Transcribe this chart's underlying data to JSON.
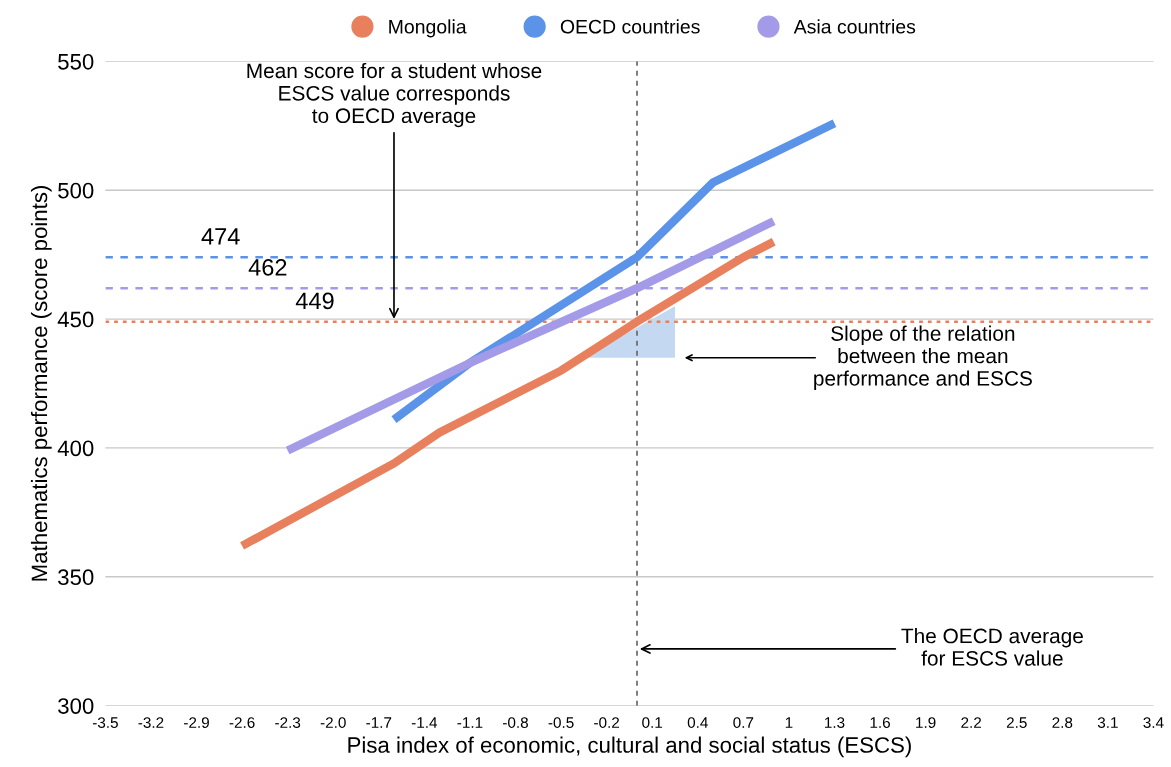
{
  "chart_data": {
    "type": "line",
    "xlabel": "Pisa index of economic, cultural and social status (ESCS)",
    "ylabel": "Mathematics performance (score points)",
    "series": [
      {
        "name": "Mongolia",
        "color": "#e8805e",
        "x": [
          -2.6,
          -1.6,
          -1.3,
          -0.5,
          0,
          0.7,
          0.9
        ],
        "values": [
          362,
          394,
          406,
          430,
          449,
          474,
          480
        ]
      },
      {
        "name": "OECD countries",
        "color": "#5b93e8",
        "x": [
          -1.6,
          -1.1,
          0,
          0.5,
          1.3
        ],
        "values": [
          411,
          433,
          474,
          503,
          526
        ]
      },
      {
        "name": "Asia countries",
        "color": "#a49be8",
        "x": [
          -2.3,
          -1.1,
          0,
          0.9
        ],
        "values": [
          399,
          433,
          462,
          488
        ]
      }
    ],
    "xlim": [
      -3.5,
      3.4
    ],
    "xticks": [
      -3.5,
      -3.2,
      -2.9,
      -2.6,
      -2.3,
      {
        "value": -2.0,
        "label": "-2.0"
      },
      -1.7,
      -1.4,
      -1.1,
      -0.8,
      -0.5,
      -0.2,
      0.1,
      0.4,
      0.7,
      1,
      1.3,
      1.6,
      1.9,
      2.2,
      2.5,
      2.8,
      3.1,
      3.4
    ],
    "ylim": [
      300,
      550
    ],
    "yticks": [
      300,
      350,
      400,
      450,
      500,
      550
    ],
    "ref_lines": [
      {
        "axis": "y",
        "value": 474,
        "label": "474",
        "color": "#5b93e8",
        "line_style": "dashed"
      },
      {
        "axis": "y",
        "value": 462,
        "label": "462",
        "color": "#a49be8",
        "line_style": "dashed"
      },
      {
        "axis": "y",
        "value": 449,
        "label": "449",
        "color": "#e8805e",
        "line_style": "dotted"
      },
      {
        "axis": "x",
        "value": 0,
        "color": "#666666",
        "line_style": "dashed"
      }
    ],
    "annotations": [
      {
        "text": "Mean score for a student whose\nESCS value corresponds\nto OECD average",
        "x": -1.6,
        "y": 449
      },
      "Slope of the relation\nbetween the mean\nperformance and ESCS",
      {
        "text": "The OECD average\nfor ESCS value",
        "x": 0,
        "y": 322
      }
    ],
    "grid": "y",
    "legend": "top",
    "line_style": "solid"
  }
}
